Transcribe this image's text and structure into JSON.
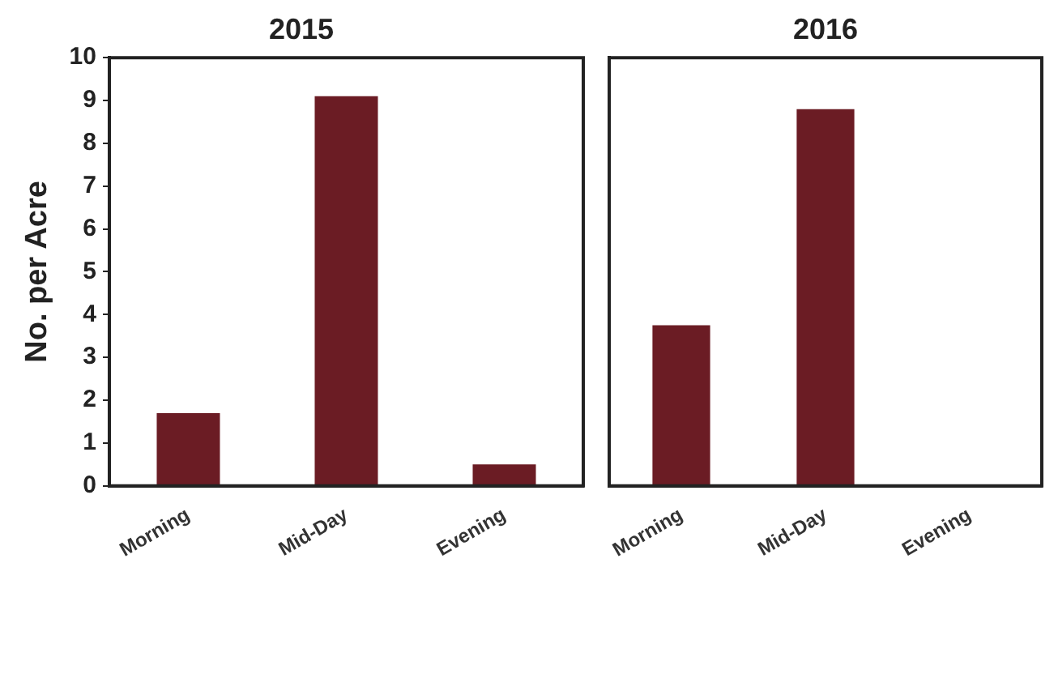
{
  "chart_data": [
    {
      "type": "bar",
      "title": "2015",
      "ylabel": "No. per Acre",
      "categories": [
        "Morning",
        "Mid-Day",
        "Evening"
      ],
      "values": [
        1.7,
        9.1,
        0.5
      ],
      "color": "#6b1c24",
      "ylim": [
        0,
        10
      ],
      "yticks": [
        0,
        1,
        2,
        3,
        4,
        5,
        6,
        7,
        8,
        9,
        10
      ]
    },
    {
      "type": "bar",
      "title": "2016",
      "categories": [
        "Morning",
        "Mid-Day",
        "Evening"
      ],
      "values": [
        3.75,
        8.8,
        0
      ],
      "color": "#6b1c24",
      "ylim": [
        0,
        10
      ],
      "yticks": [
        0,
        1,
        2,
        3,
        4,
        5,
        6,
        7,
        8,
        9,
        10
      ],
      "tick_labels": "x"
    }
  ]
}
